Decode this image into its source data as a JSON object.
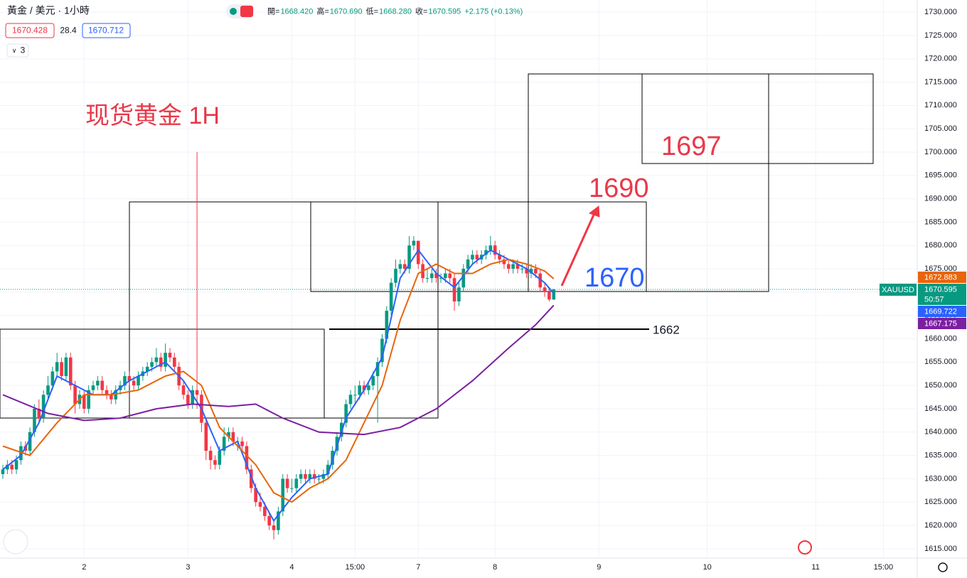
{
  "chart_data": {
    "type": "candlestick",
    "title": "黃金 / 美元 · 1小時",
    "ohlc_legend": [
      {
        "label": "開=",
        "value": "1668.420"
      },
      {
        "label": "高=",
        "value": "1670.690"
      },
      {
        "label": "低=",
        "value": "1668.280"
      },
      {
        "label": "收=",
        "value": "1670.595"
      }
    ],
    "change": "+2.175 (+0.13%)",
    "bid": "1670.428",
    "spread": "28.4",
    "ask": "1670.712",
    "indicator_count": "3",
    "annotations": {
      "headline": "现货黄金 1H",
      "target_high": "1697",
      "target_mid": "1690",
      "support": "1670",
      "line_level": "1662"
    },
    "symbol": "XAUUSD",
    "countdown": "50:57",
    "colors": {
      "up": "#089981",
      "down": "#f23645"
    },
    "xlim": [
      -0.63,
      202.5
    ],
    "ylim": [
      1613,
      1732.6
    ],
    "xticks": [
      {
        "value": 18,
        "label": "2"
      },
      {
        "value": 41,
        "label": "3"
      },
      {
        "value": 64,
        "label": "4"
      },
      {
        "value": 78,
        "label": "15:00"
      },
      {
        "value": 92,
        "label": "7"
      },
      {
        "value": 109,
        "label": "8"
      },
      {
        "value": 132,
        "label": "9"
      },
      {
        "value": 156,
        "label": "10"
      },
      {
        "value": 180,
        "label": "11"
      },
      {
        "value": 195,
        "label": "15:00"
      }
    ],
    "yticks": [
      {
        "value": 1615,
        "label": "1615.000"
      },
      {
        "value": 1620,
        "label": "1620.000"
      },
      {
        "value": 1625,
        "label": "1625.000"
      },
      {
        "value": 1630,
        "label": "1630.000"
      },
      {
        "value": 1635,
        "label": "1635.000"
      },
      {
        "value": 1640,
        "label": "1640.000"
      },
      {
        "value": 1645,
        "label": "1645.000"
      },
      {
        "value": 1650,
        "label": "1650.000"
      },
      {
        "value": 1655,
        "label": "1655.000"
      },
      {
        "value": 1660,
        "label": "1660.000"
      },
      {
        "value": 1665,
        "label": "1665.000"
      },
      {
        "value": 1670,
        "label": "1670.000"
      },
      {
        "value": 1675,
        "label": "1675.000"
      },
      {
        "value": 1680,
        "label": "1680.000"
      },
      {
        "value": 1685,
        "label": "1685.000"
      },
      {
        "value": 1690,
        "label": "1690.000"
      },
      {
        "value": 1695,
        "label": "1695.000"
      },
      {
        "value": 1700,
        "label": "1700.000"
      },
      {
        "value": 1705,
        "label": "1705.000"
      },
      {
        "value": 1710,
        "label": "1710.000"
      },
      {
        "value": 1715,
        "label": "1715.000"
      },
      {
        "value": 1720,
        "label": "1720.000"
      },
      {
        "value": 1725,
        "label": "1725.000"
      },
      {
        "value": 1730,
        "label": "1730.000"
      }
    ],
    "last_price": 1670.595,
    "candles": [
      [
        1631,
        1633,
        1630,
        1632
      ],
      [
        1632,
        1634,
        1631,
        1633
      ],
      [
        1633,
        1634,
        1631,
        1632
      ],
      [
        1632,
        1635,
        1631,
        1634
      ],
      [
        1634,
        1638,
        1633,
        1637
      ],
      [
        1637,
        1638,
        1635,
        1636
      ],
      [
        1636,
        1641,
        1635,
        1640
      ],
      [
        1640,
        1646,
        1639,
        1645
      ],
      [
        1645,
        1647,
        1642,
        1643
      ],
      [
        1643,
        1649,
        1642,
        1648
      ],
      [
        1648,
        1652,
        1647,
        1650
      ],
      [
        1650,
        1654,
        1649,
        1653
      ],
      [
        1653,
        1657,
        1652,
        1655
      ],
      [
        1655,
        1656,
        1651,
        1652
      ],
      [
        1652,
        1657,
        1651,
        1656
      ],
      [
        1656,
        1657,
        1649,
        1650
      ],
      [
        1650,
        1651,
        1644,
        1646
      ],
      [
        1646,
        1649,
        1645,
        1648
      ],
      [
        1648,
        1649,
        1644,
        1645
      ],
      [
        1645,
        1650,
        1644,
        1649
      ],
      [
        1649,
        1651,
        1648,
        1650
      ],
      [
        1650,
        1652,
        1649,
        1651
      ],
      [
        1651,
        1652,
        1648,
        1649
      ],
      [
        1649,
        1650,
        1647,
        1648
      ],
      [
        1648,
        1649,
        1646,
        1647
      ],
      [
        1647,
        1650,
        1646,
        1649
      ],
      [
        1649,
        1651,
        1648,
        1650
      ],
      [
        1650,
        1653,
        1649,
        1652
      ],
      [
        1652,
        1653,
        1650,
        1651
      ],
      [
        1651,
        1652,
        1649,
        1650
      ],
      [
        1650,
        1653,
        1649,
        1652
      ],
      [
        1652,
        1654,
        1651,
        1653
      ],
      [
        1653,
        1655,
        1652,
        1654
      ],
      [
        1654,
        1656,
        1653,
        1655
      ],
      [
        1655,
        1658,
        1654,
        1656
      ],
      [
        1656,
        1657,
        1653,
        1654
      ],
      [
        1654,
        1659,
        1653,
        1657
      ],
      [
        1657,
        1658,
        1655,
        1656
      ],
      [
        1656,
        1657,
        1653,
        1654
      ],
      [
        1654,
        1655,
        1649,
        1650
      ],
      [
        1650,
        1651,
        1647,
        1648
      ],
      [
        1648,
        1649,
        1645,
        1646
      ],
      [
        1646,
        1650,
        1645,
        1649
      ],
      [
        1649,
        1700,
        1645,
        1648
      ],
      [
        1648,
        1649,
        1640,
        1642
      ],
      [
        1642,
        1643,
        1634,
        1636
      ],
      [
        1636,
        1637,
        1632,
        1634
      ],
      [
        1634,
        1635,
        1632,
        1633
      ],
      [
        1633,
        1637,
        1632,
        1636
      ],
      [
        1636,
        1641,
        1635,
        1639
      ],
      [
        1639,
        1641,
        1638,
        1640
      ],
      [
        1640,
        1641,
        1637,
        1638
      ],
      [
        1638,
        1639,
        1636,
        1638
      ],
      [
        1638,
        1639,
        1636,
        1637
      ],
      [
        1637,
        1638,
        1631,
        1632
      ],
      [
        1632,
        1633,
        1627,
        1628
      ],
      [
        1628,
        1629,
        1624,
        1625
      ],
      [
        1625,
        1627,
        1623,
        1624
      ],
      [
        1624,
        1625,
        1621,
        1622
      ],
      [
        1622,
        1623,
        1619,
        1620
      ],
      [
        1620,
        1621,
        1617,
        1619
      ],
      [
        1619,
        1624,
        1618,
        1623
      ],
      [
        1623,
        1631,
        1622,
        1630
      ],
      [
        1630,
        1631,
        1627,
        1628
      ],
      [
        1628,
        1630,
        1627,
        1628
      ],
      [
        1628,
        1631,
        1627,
        1630
      ],
      [
        1630,
        1632,
        1629,
        1631
      ],
      [
        1631,
        1632,
        1629,
        1630
      ],
      [
        1630,
        1632,
        1629,
        1631
      ],
      [
        1631,
        1632,
        1629,
        1630
      ],
      [
        1630,
        1631,
        1629,
        1630
      ],
      [
        1630,
        1632,
        1629,
        1631
      ],
      [
        1631,
        1634,
        1630,
        1633
      ],
      [
        1633,
        1637,
        1632,
        1636
      ],
      [
        1636,
        1640,
        1635,
        1639
      ],
      [
        1639,
        1643,
        1638,
        1642
      ],
      [
        1642,
        1647,
        1641,
        1646
      ],
      [
        1646,
        1649,
        1645,
        1648
      ],
      [
        1648,
        1650,
        1646,
        1648
      ],
      [
        1648,
        1651,
        1647,
        1650
      ],
      [
        1650,
        1651,
        1648,
        1649
      ],
      [
        1649,
        1651,
        1648,
        1650
      ],
      [
        1650,
        1653,
        1649,
        1652
      ],
      [
        1652,
        1656,
        1642,
        1655
      ],
      [
        1655,
        1661,
        1654,
        1660
      ],
      [
        1660,
        1667,
        1659,
        1666
      ],
      [
        1666,
        1673,
        1665,
        1672
      ],
      [
        1672,
        1677,
        1671,
        1675
      ],
      [
        1675,
        1677,
        1674,
        1676
      ],
      [
        1676,
        1677,
        1674,
        1675
      ],
      [
        1675,
        1682,
        1674,
        1680
      ],
      [
        1680,
        1682,
        1679,
        1681
      ],
      [
        1681,
        1681,
        1675,
        1676
      ],
      [
        1676,
        1677,
        1672,
        1673
      ],
      [
        1673,
        1675,
        1672,
        1673
      ],
      [
        1673,
        1675,
        1672,
        1674
      ],
      [
        1674,
        1675,
        1672,
        1673
      ],
      [
        1673,
        1674,
        1672,
        1673
      ],
      [
        1673,
        1675,
        1672,
        1674
      ],
      [
        1674,
        1675,
        1672,
        1673
      ],
      [
        1673,
        1674,
        1666,
        1668
      ],
      [
        1668,
        1672,
        1667,
        1671
      ],
      [
        1671,
        1676,
        1670,
        1675
      ],
      [
        1675,
        1678,
        1674,
        1677
      ],
      [
        1677,
        1679,
        1676,
        1678
      ],
      [
        1678,
        1679,
        1676,
        1677
      ],
      [
        1677,
        1679,
        1676,
        1678
      ],
      [
        1678,
        1680,
        1677,
        1679
      ],
      [
        1679,
        1682,
        1678,
        1680
      ],
      [
        1680,
        1681,
        1677,
        1678
      ],
      [
        1678,
        1679,
        1676,
        1677
      ],
      [
        1677,
        1678,
        1675,
        1676
      ],
      [
        1676,
        1677,
        1674,
        1675
      ],
      [
        1675,
        1677,
        1674,
        1676
      ],
      [
        1676,
        1677,
        1674,
        1675
      ],
      [
        1675,
        1676,
        1674,
        1675
      ],
      [
        1675,
        1676,
        1673,
        1674
      ],
      [
        1674,
        1676,
        1673,
        1675
      ],
      [
        1675,
        1676,
        1673,
        1674
      ],
      [
        1674,
        1675,
        1670,
        1671
      ],
      [
        1671,
        1672,
        1669,
        1670
      ],
      [
        1670,
        1671,
        1668,
        1668.42
      ],
      [
        1668.42,
        1670.69,
        1668.28,
        1670.595
      ]
    ],
    "lines": [
      {
        "color": "#2962ff",
        "x": [
          0,
          4,
          8,
          12,
          16,
          20,
          24,
          28,
          32,
          36,
          40,
          44,
          48,
          52,
          56,
          60,
          64,
          68,
          72,
          76,
          80,
          84,
          88,
          92,
          96,
          100,
          104,
          108,
          112,
          116,
          120,
          122
        ],
        "values": [
          1632,
          1635,
          1642,
          1652,
          1650,
          1648,
          1648,
          1651,
          1653,
          1655,
          1651,
          1645,
          1636,
          1638,
          1628,
          1621,
          1626,
          1630,
          1631,
          1643,
          1649,
          1656,
          1673,
          1679,
          1674,
          1671,
          1676,
          1679,
          1677,
          1675,
          1672,
          1669.722
        ]
      },
      {
        "color": "#e8650a",
        "x": [
          0,
          6,
          12,
          18,
          24,
          30,
          36,
          40,
          44,
          48,
          52,
          56,
          60,
          64,
          68,
          72,
          76,
          80,
          84,
          88,
          92,
          96,
          100,
          104,
          108,
          112,
          116,
          120,
          122
        ],
        "values": [
          1637,
          1635,
          1642,
          1648,
          1648,
          1649,
          1652,
          1653,
          1650,
          1641,
          1637,
          1633,
          1627,
          1625,
          1628,
          1630,
          1634,
          1642,
          1650,
          1664,
          1674,
          1676,
          1674,
          1674,
          1676,
          1677,
          1676,
          1674.5,
          1672.883
        ]
      },
      {
        "color": "#7b1fa2",
        "x": [
          0,
          10,
          18,
          26,
          34,
          42,
          50,
          56,
          62,
          70,
          80,
          88,
          96,
          104,
          112,
          118,
          122
        ],
        "values": [
          1648,
          1644,
          1642.5,
          1643,
          1645,
          1646,
          1645.5,
          1646,
          1643,
          1640,
          1639.5,
          1641,
          1645,
          1651,
          1658,
          1663,
          1667.175
        ]
      }
    ],
    "price_tags": [
      {
        "value": 1672.883,
        "color": "#e8650a"
      },
      {
        "value": 1669.722,
        "color": "#2962ff"
      },
      {
        "value": 1667.175,
        "color": "#7b1fa2"
      }
    ]
  }
}
